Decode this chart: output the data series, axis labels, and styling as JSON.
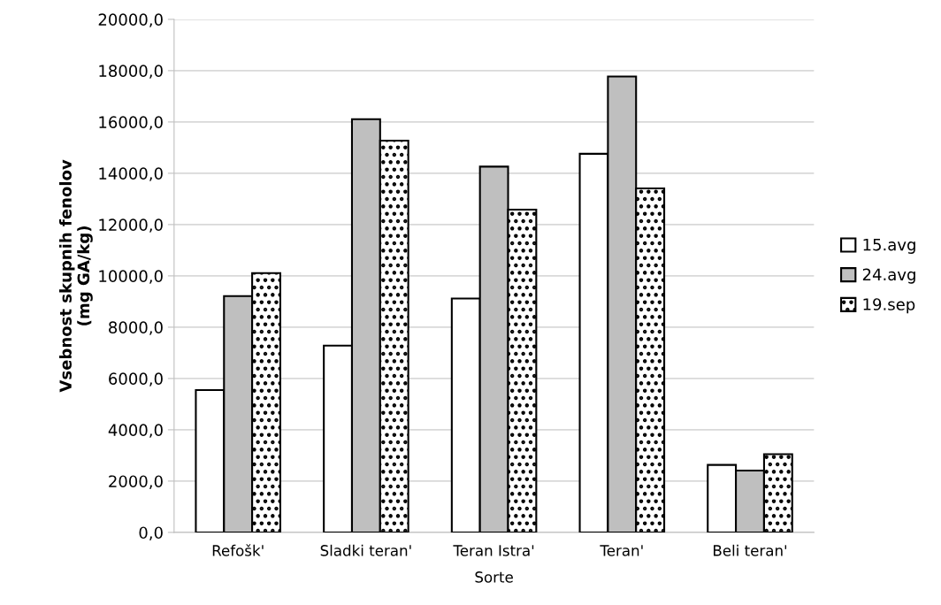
{
  "chart_data": {
    "type": "bar",
    "xlabel": "Sorte",
    "ylabel": "Vsebnost skupnih fenolov\n(mg GA/kg)",
    "categories": [
      "Refošk'",
      "Sladki teran'",
      "Teran Istra'",
      "Teran'",
      "Beli teran'"
    ],
    "series": [
      {
        "name": "15.avg",
        "color": "#ffffff",
        "values": [
          5550,
          7280,
          9120,
          14760,
          2630
        ]
      },
      {
        "name": "24.avg",
        "color": "#bfbfbf",
        "values": [
          9210,
          16110,
          14260,
          17770,
          2410
        ]
      },
      {
        "name": "19.sep",
        "color": "#000000",
        "values": [
          10110,
          15270,
          12580,
          13410,
          3050
        ]
      }
    ],
    "ylim": [
      0,
      20000
    ],
    "yticks": [
      {
        "value": 0,
        "label": "0,0"
      },
      {
        "value": 2000,
        "label": "2000,0"
      },
      {
        "value": 4000,
        "label": "4000,0"
      },
      {
        "value": 6000,
        "label": "6000,0"
      },
      {
        "value": 8000,
        "label": "8000,0"
      },
      {
        "value": 10000,
        "label": "10000,0"
      },
      {
        "value": 12000,
        "label": "12000,0"
      },
      {
        "value": 14000,
        "label": "14000,0"
      },
      {
        "value": 16000,
        "label": "16000,0"
      },
      {
        "value": 18000,
        "label": "18000,0"
      },
      {
        "value": 20000,
        "label": "20000,0"
      }
    ],
    "grid": "y",
    "legend": "right"
  }
}
